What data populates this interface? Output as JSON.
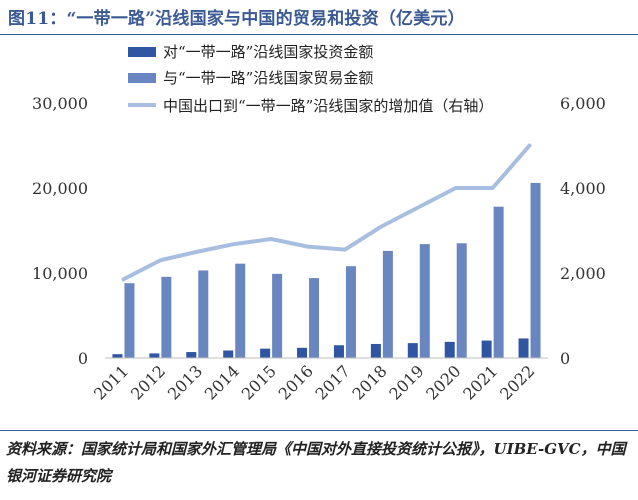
{
  "title": "图11：“一带一路”沿线国家与中国的贸易和投资（亿美元）",
  "source": "资料来源：国家统计局和国家外汇管理局《中国对外直接投资统计公报》，UIBE-GVC，中国银河证券研究院",
  "colors": {
    "investment": "#2f55a3",
    "trade": "#6a86c0",
    "value_added": "#a8bee0",
    "accent": "#3b5a94"
  },
  "chart_data": {
    "type": "bar",
    "categories": [
      "2011",
      "2012",
      "2013",
      "2014",
      "2015",
      "2016",
      "2017",
      "2018",
      "2019",
      "2020",
      "2021",
      "2022"
    ],
    "y_left": {
      "range": [
        0,
        30000
      ],
      "ticks": [
        "0",
        "10,000",
        "20,000",
        "30,000"
      ]
    },
    "y_right": {
      "range": [
        0,
        6000
      ],
      "ticks": [
        "0",
        "2,000",
        "4,000",
        "6,000"
      ]
    },
    "series": [
      {
        "name": "对“一带一路”沿线国家投资金额",
        "type": "bar",
        "axis": "left",
        "values": [
          450,
          540,
          700,
          880,
          1100,
          1200,
          1500,
          1650,
          1750,
          1900,
          2050,
          2300
        ]
      },
      {
        "name": "与“一带一路”沿线国家贸易金额",
        "type": "bar",
        "axis": "left",
        "values": [
          8800,
          9550,
          10300,
          11100,
          9900,
          9400,
          10800,
          12600,
          13400,
          13500,
          17800,
          20600
        ]
      },
      {
        "name": "中国出口到“一带一路”沿线国家的增加值（右轴）",
        "type": "line",
        "axis": "right",
        "values": [
          1850,
          2300,
          2500,
          2680,
          2800,
          2620,
          2550,
          3100,
          3550,
          4000,
          4000,
          5000
        ]
      }
    ],
    "legend_position": "top"
  }
}
